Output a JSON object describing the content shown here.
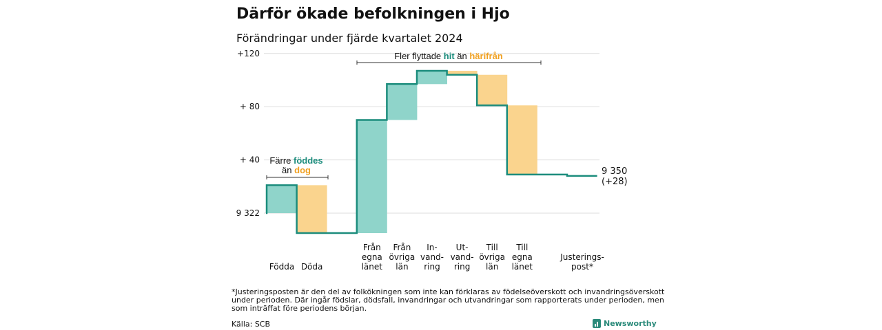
{
  "title": "Därför ökade befolkningen i Hjo",
  "subtitle": "Förändringar under fjärde kvartalet 2024",
  "colors": {
    "increase": "#8fd4ca",
    "decrease": "#fad48e",
    "line": "#1b8c7c",
    "accent_green": "#1b8c7c",
    "accent_orange": "#f0a020",
    "grid": "#dddddd"
  },
  "chart_data": {
    "type": "bar",
    "subtype": "waterfall",
    "title": "Därför ökade befolkningen i Hjo",
    "subtitle": "Förändringar under fjärde kvartalet 2024",
    "base_value": 9322,
    "ylim": [
      -15,
      120
    ],
    "y_ticks": [
      {
        "value": 0,
        "label": "9 322"
      },
      {
        "value": 40,
        "label": "+ 40"
      },
      {
        "value": 80,
        "label": "+ 80"
      },
      {
        "value": 120,
        "label": "+120"
      }
    ],
    "grid": true,
    "bars": [
      {
        "lines": [
          "Födda"
        ],
        "delta": 21,
        "start": 0,
        "end": 21,
        "kind": "increase"
      },
      {
        "lines": [
          "Döda"
        ],
        "delta": -36,
        "start": 21,
        "end": -15,
        "kind": "decrease"
      },
      {
        "lines": [],
        "delta": 0,
        "start": -15,
        "end": -15,
        "kind": "spacer"
      },
      {
        "lines": [
          "Från",
          "egna",
          "länet"
        ],
        "delta": 85,
        "start": -15,
        "end": 70,
        "kind": "increase"
      },
      {
        "lines": [
          "Från",
          "övriga",
          "län"
        ],
        "delta": 27,
        "start": 70,
        "end": 97,
        "kind": "increase"
      },
      {
        "lines": [
          "In-",
          "vand-",
          "ring"
        ],
        "delta": 10,
        "start": 97,
        "end": 107,
        "kind": "increase"
      },
      {
        "lines": [
          "Ut-",
          "vand-",
          "ring"
        ],
        "delta": -3,
        "start": 107,
        "end": 104,
        "kind": "decrease"
      },
      {
        "lines": [
          "Till",
          "övriga",
          "län"
        ],
        "delta": -23,
        "start": 104,
        "end": 81,
        "kind": "decrease"
      },
      {
        "lines": [
          "Till",
          "egna",
          "länet"
        ],
        "delta": -52,
        "start": 81,
        "end": 29,
        "kind": "decrease"
      },
      {
        "lines": [],
        "delta": 0,
        "start": 29,
        "end": 29,
        "kind": "spacer"
      },
      {
        "lines": [
          "Justerings-",
          "post*"
        ],
        "delta": -1,
        "start": 29,
        "end": 28,
        "kind": "adjustment"
      }
    ],
    "end_label": {
      "value": "9 350",
      "change": "(+28)"
    }
  },
  "annotations": {
    "births": {
      "line1": "Färre ",
      "line1_bold": "föddes",
      "line2": "än ",
      "line2_bold": "dog"
    },
    "migration": {
      "text1": "Fler flyttade ",
      "bold1": "hit",
      "text2": " än ",
      "bold2": "härifrån"
    }
  },
  "footnote": [
    "*Justeringsposten är den del av folkökningen som inte kan förklaras av födelseöverskott och invandringsöverskott",
    "under perioden. Där ingår födslar, dödsfall, invandringar och utvandringar som rapporterats under perioden, men",
    "som inträffat före periodens början."
  ],
  "source": "Källa: SCB",
  "brand": "Newsworthy"
}
